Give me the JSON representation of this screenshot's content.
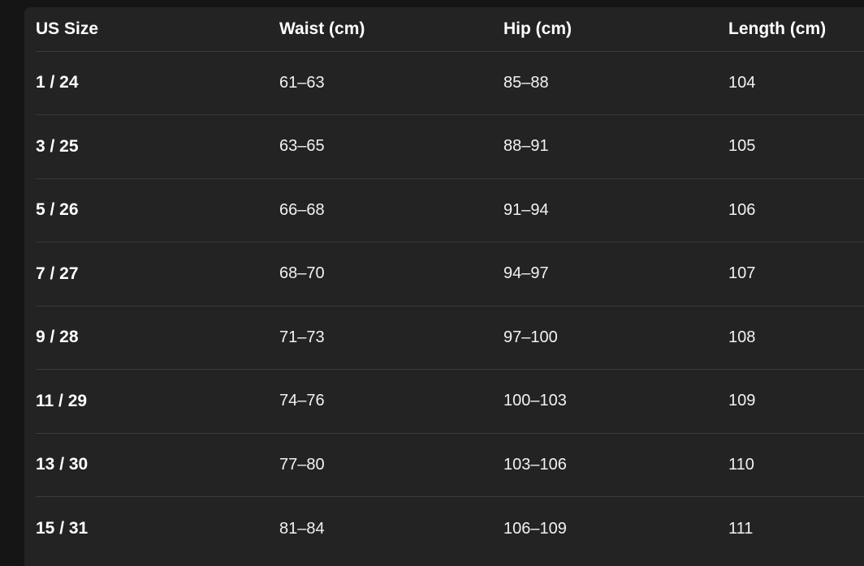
{
  "colors": {
    "page_background": "#151515",
    "card_background": "#232323",
    "row_divider": "#3a3a3a",
    "header_text": "#ffffff",
    "value_text": "#f2f2f2"
  },
  "size_chart": {
    "columns": [
      "US Size",
      "Waist (cm)",
      "Hip (cm)",
      "Length (cm)"
    ],
    "rows": [
      [
        "1 / 24",
        "61–63",
        "85–88",
        "104"
      ],
      [
        "3 / 25",
        "63–65",
        "88–91",
        "105"
      ],
      [
        "5 / 26",
        "66–68",
        "91–94",
        "106"
      ],
      [
        "7 / 27",
        "68–70",
        "94–97",
        "107"
      ],
      [
        "9 / 28",
        "71–73",
        "97–100",
        "108"
      ],
      [
        "11 / 29",
        "74–76",
        "100–103",
        "109"
      ],
      [
        "13 / 30",
        "77–80",
        "103–106",
        "110"
      ],
      [
        "15 / 31",
        "81–84",
        "106–109",
        "111"
      ]
    ]
  },
  "chart_data": {
    "type": "table",
    "columns": [
      "US Size",
      "Waist (cm)",
      "Hip (cm)",
      "Length (cm)"
    ],
    "rows": [
      [
        "1 / 24",
        "61–63",
        "85–88",
        "104"
      ],
      [
        "3 / 25",
        "63–65",
        "88–91",
        "105"
      ],
      [
        "5 / 26",
        "66–68",
        "91–94",
        "106"
      ],
      [
        "7 / 27",
        "68–70",
        "94–97",
        "107"
      ],
      [
        "9 / 28",
        "71–73",
        "97–100",
        "108"
      ],
      [
        "11 / 29",
        "74–76",
        "100–103",
        "109"
      ],
      [
        "13 / 30",
        "77–80",
        "103–106",
        "110"
      ],
      [
        "15 / 31",
        "81–84",
        "106–109",
        "111"
      ]
    ]
  }
}
